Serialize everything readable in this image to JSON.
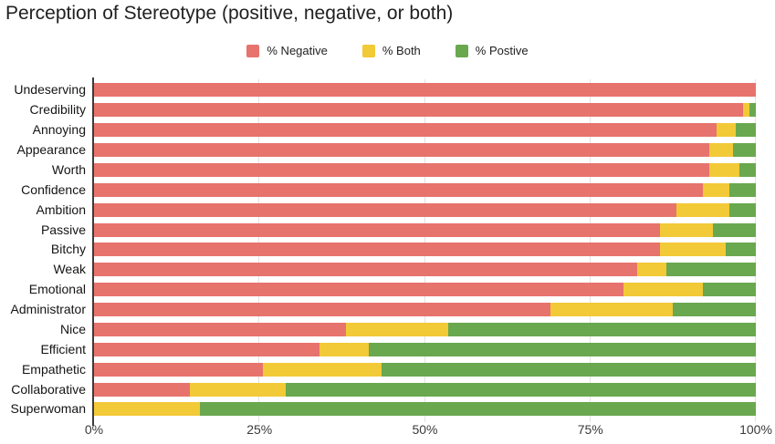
{
  "title": "Perception of Stereotype (positive, negative, or both)",
  "colors": {
    "negative": "#e7736d",
    "both": "#f2c937",
    "positive": "#69a84f",
    "gridline": "#e3e3e3",
    "axis_line": "#3c3c3c",
    "title_text": "#212121",
    "label_text": "#141414"
  },
  "legend": {
    "items": [
      {
        "label": "% Negative",
        "color": "#e7736d"
      },
      {
        "label": "% Both",
        "color": "#f2c937"
      },
      {
        "label": "% Postive",
        "color": "#69a84f"
      }
    ]
  },
  "chart_data": {
    "type": "bar",
    "orientation": "horizontal",
    "stacked": true,
    "title": "Perception of Stereotype (positive, negative, or both)",
    "xlabel": "",
    "ylabel": "",
    "xlim": [
      0,
      100
    ],
    "grid": true,
    "legend_position": "top",
    "x_axis": {
      "tick_labels": [
        "0%",
        "25%",
        "50%",
        "75%",
        "100%"
      ],
      "tick_values": [
        0,
        25,
        50,
        75,
        100
      ]
    },
    "categories": [
      "Undeserving",
      "Credibility",
      "Annoying",
      "Appearance",
      "Worth",
      "Confidence",
      "Ambition",
      "Passive",
      "Bitchy",
      "Weak",
      "Emotional",
      "Administrator",
      "Nice",
      "Efficient",
      "Empathetic",
      "Collaborative",
      "Superwoman"
    ],
    "series": [
      {
        "name": "% Negative",
        "color": "#e7736d",
        "values": [
          100,
          98,
          94,
          93,
          93,
          92,
          88,
          85.5,
          85.5,
          82,
          80,
          69,
          38,
          34,
          25.5,
          14.5,
          0
        ]
      },
      {
        "name": "% Both",
        "color": "#f2c937",
        "values": [
          0,
          1,
          3,
          3.5,
          4.5,
          4,
          8,
          8,
          10,
          4.5,
          12,
          18.5,
          15.5,
          7.5,
          18,
          14.5,
          16
        ]
      },
      {
        "name": "% Postive",
        "color": "#69a84f",
        "values": [
          0,
          1,
          3,
          3.5,
          2.5,
          4,
          4,
          6.5,
          4.5,
          13.5,
          8,
          12.5,
          46.5,
          58.5,
          56.5,
          71,
          84
        ]
      }
    ]
  }
}
